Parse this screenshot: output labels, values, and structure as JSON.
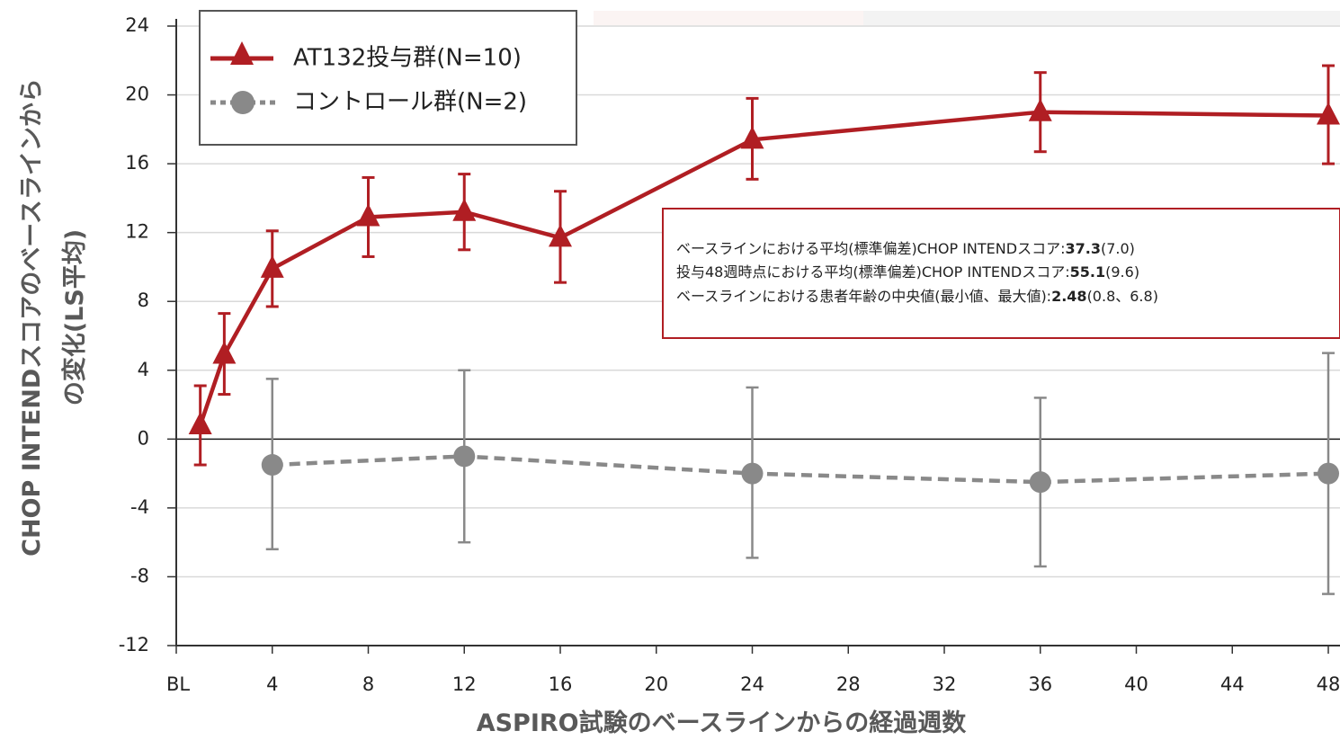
{
  "chart_data": {
    "type": "line",
    "xlabel": "ASPIRO試験のベースラインからの経過週数",
    "ylabel_line1": "CHOP INTENDスコアのベースラインから",
    "ylabel_line2": "の変化(LS平均)",
    "ylim": [
      -12,
      24
    ],
    "yticks": [
      24,
      20,
      16,
      12,
      8,
      4,
      0,
      -4,
      -8,
      -12
    ],
    "xlim": [
      0,
      48
    ],
    "xticks": [
      "BL",
      "4",
      "8",
      "12",
      "16",
      "20",
      "24",
      "28",
      "32",
      "36",
      "40",
      "44",
      "48"
    ],
    "grid": true,
    "legend_position": "top-left",
    "series": [
      {
        "name": "AT132投与群(N=10)",
        "color": "#B01E23",
        "marker": "triangle",
        "line": "solid",
        "x": [
          1,
          2,
          4,
          8,
          12,
          16,
          24,
          36,
          48
        ],
        "values": [
          0.8,
          4.9,
          9.9,
          12.9,
          13.2,
          11.7,
          17.4,
          19.0,
          18.8
        ],
        "err_low": [
          -1.5,
          2.6,
          7.7,
          10.6,
          11.0,
          9.1,
          15.1,
          16.7,
          16.0
        ],
        "err_high": [
          3.1,
          7.3,
          12.1,
          15.2,
          15.4,
          14.4,
          19.8,
          21.3,
          21.7
        ]
      },
      {
        "name": "コントロール群(N=2)",
        "color": "#898989",
        "marker": "circle",
        "line": "dashed",
        "x": [
          4,
          12,
          24,
          36,
          48
        ],
        "values": [
          -1.5,
          -1.0,
          -2.0,
          -2.5,
          -2.0
        ],
        "err_low": [
          -6.4,
          -6.0,
          -6.9,
          -7.4,
          -9.0
        ],
        "err_high": [
          3.5,
          4.0,
          3.0,
          2.4,
          5.0
        ]
      }
    ],
    "annotation": [
      {
        "pre": "ベースラインにおける平均(標準偏差)CHOP INTENDスコア:",
        "bold": "37.3",
        "post": "(7.0)"
      },
      {
        "pre": "投与48週時点における平均(標準偏差)CHOP INTENDスコア:",
        "bold": "55.1",
        "post": "(9.6)"
      },
      {
        "pre": "ベースラインにおける患者年齢の中央値(最小値、最大値):",
        "bold": "2.48",
        "post": "(0.8、6.8)"
      }
    ]
  }
}
